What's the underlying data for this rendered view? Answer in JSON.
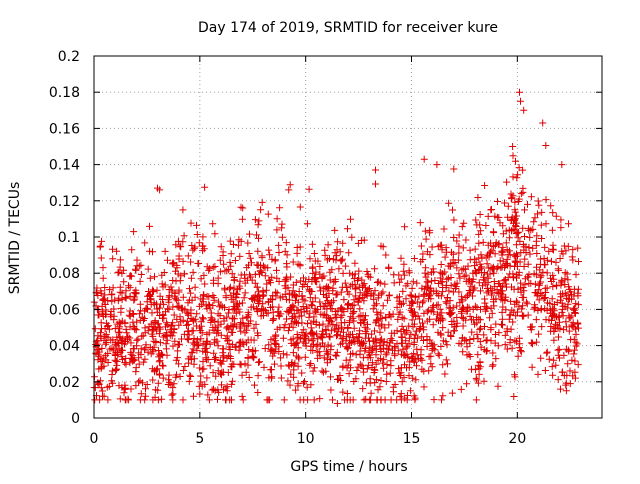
{
  "chart_data": {
    "type": "scatter",
    "title": "Day 174 of 2019, SRMTID for receiver kure",
    "xlabel": "GPS time / hours",
    "ylabel": "SRMTID / TECUs",
    "xlim": [
      0,
      24
    ],
    "ylim": [
      0,
      0.2
    ],
    "x_ticks": [
      0,
      5,
      10,
      15,
      20
    ],
    "x_tick_labels": [
      "0",
      "5",
      "10",
      "15",
      "20"
    ],
    "y_ticks": [
      0,
      0.02,
      0.04,
      0.06,
      0.08,
      0.1,
      0.12,
      0.14,
      0.16,
      0.18,
      0.2
    ],
    "y_tick_labels": [
      "0",
      "0.02",
      "0.04",
      "0.06",
      "0.08",
      "0.1",
      "0.12",
      "0.14",
      "0.16",
      "0.18",
      "0.2"
    ],
    "grid": true,
    "marker": "+",
    "color": "#e00000",
    "data_x_range": [
      0,
      22.9
    ],
    "series": [
      {
        "name": "SRMTID",
        "trend": [
          [
            0.0,
            0.045
          ],
          [
            1.0,
            0.048
          ],
          [
            2.0,
            0.05
          ],
          [
            3.0,
            0.045
          ],
          [
            4.0,
            0.062
          ],
          [
            5.0,
            0.055
          ],
          [
            6.0,
            0.048
          ],
          [
            7.0,
            0.058
          ],
          [
            8.0,
            0.06
          ],
          [
            9.0,
            0.054
          ],
          [
            10.0,
            0.055
          ],
          [
            11.0,
            0.056
          ],
          [
            12.0,
            0.052
          ],
          [
            13.0,
            0.052
          ],
          [
            14.0,
            0.046
          ],
          [
            15.0,
            0.05
          ],
          [
            16.0,
            0.06
          ],
          [
            17.0,
            0.065
          ],
          [
            18.0,
            0.068
          ],
          [
            19.0,
            0.072
          ],
          [
            20.0,
            0.085
          ],
          [
            20.5,
            0.09
          ],
          [
            21.0,
            0.075
          ],
          [
            22.0,
            0.06
          ],
          [
            22.9,
            0.052
          ]
        ],
        "peaks": [
          {
            "x": 0.3,
            "y": 0.095
          },
          {
            "x": 3.0,
            "y": 0.127
          },
          {
            "x": 3.1,
            "y": 0.126
          },
          {
            "x": 4.2,
            "y": 0.115
          },
          {
            "x": 9.2,
            "y": 0.126
          },
          {
            "x": 13.3,
            "y": 0.137
          },
          {
            "x": 15.6,
            "y": 0.143
          },
          {
            "x": 16.2,
            "y": 0.14
          },
          {
            "x": 20.1,
            "y": 0.18
          },
          {
            "x": 20.15,
            "y": 0.175
          },
          {
            "x": 20.3,
            "y": 0.17
          },
          {
            "x": 21.2,
            "y": 0.163
          },
          {
            "x": 22.1,
            "y": 0.14
          }
        ],
        "lows": [
          {
            "x": 0.4,
            "y": 0.012
          },
          {
            "x": 4.7,
            "y": 0.012
          },
          {
            "x": 11.5,
            "y": 0.008
          },
          {
            "x": 22.5,
            "y": 0.019
          }
        ]
      }
    ]
  }
}
